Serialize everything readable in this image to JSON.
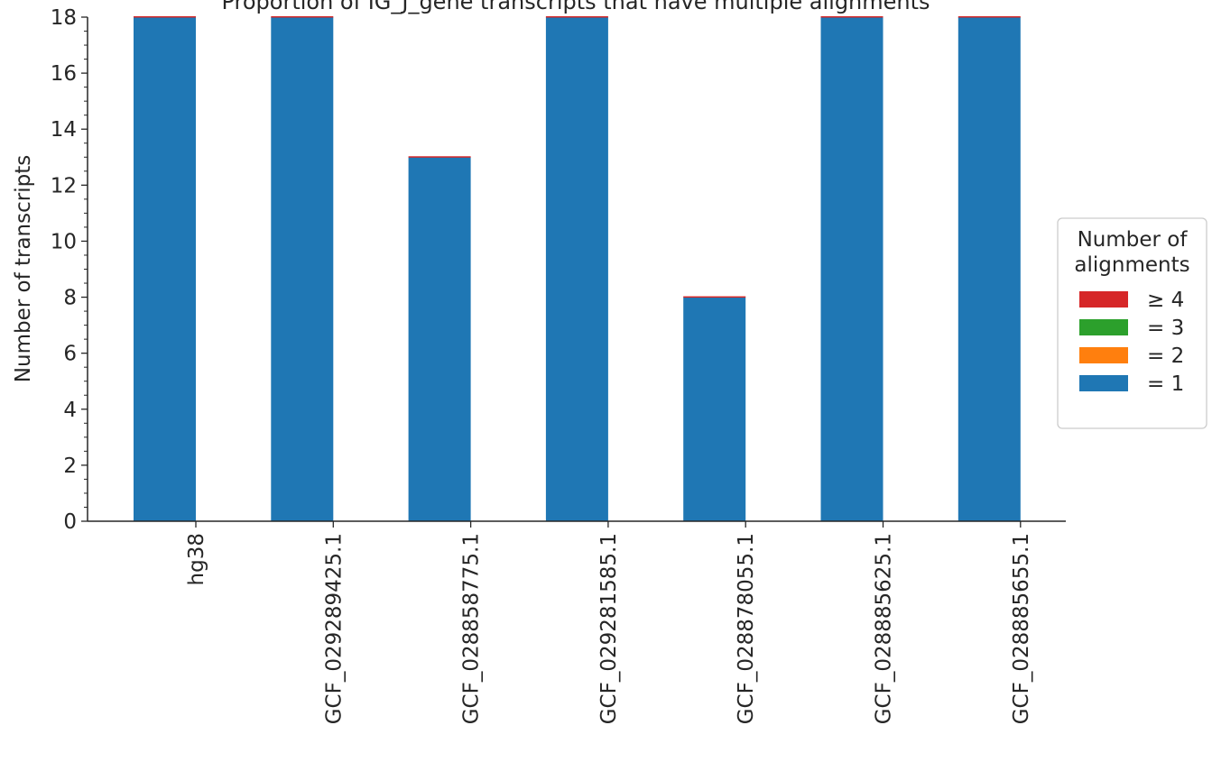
{
  "chart_data": {
    "type": "bar",
    "stacked": true,
    "title": "Proportion of IG_J_gene transcripts that have multiple alignments",
    "xlabel": "",
    "ylabel": "Number of transcripts",
    "ylim": [
      0,
      18
    ],
    "yticks": [
      "0",
      "2",
      "4",
      "6",
      "8",
      "10",
      "12",
      "14",
      "16",
      "18"
    ],
    "categories": [
      "hg38",
      "GCF_029289425.1",
      "GCF_028858775.1",
      "GCF_029281585.1",
      "GCF_028878055.1",
      "GCF_028885625.1",
      "GCF_028885655.1"
    ],
    "series": [
      {
        "name": "= 1",
        "color": "#1f77b4",
        "values": [
          18,
          18,
          13,
          18,
          8,
          18,
          18
        ]
      },
      {
        "name": "= 2",
        "color": "#ff7f0e",
        "values": [
          0,
          0,
          0,
          0,
          0,
          0,
          0
        ]
      },
      {
        "name": "= 3",
        "color": "#2ca02c",
        "values": [
          0,
          0,
          0,
          0,
          0,
          0,
          0
        ]
      },
      {
        "name": "≥ 4",
        "color": "#d62728",
        "values": [
          0,
          0,
          0,
          0,
          0,
          0,
          0
        ]
      }
    ],
    "legend": {
      "title": "Number of\nalignments",
      "placement": "right",
      "order": [
        "≥ 4",
        "= 3",
        "= 2",
        "= 1"
      ]
    },
    "grid": false
  }
}
